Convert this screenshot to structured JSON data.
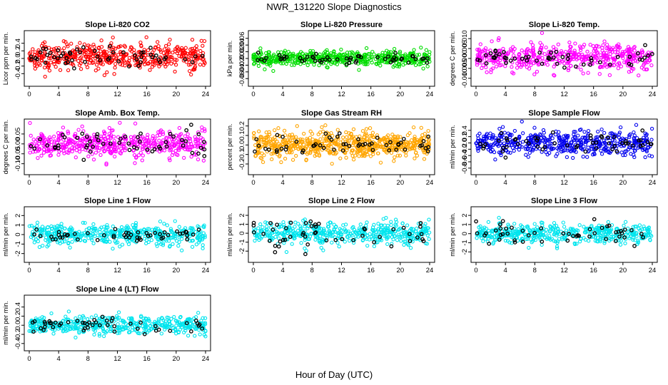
{
  "figure": {
    "title": "NWR_131220  Slope Diagnostics",
    "xlabel": "Hour of Day (UTC)"
  },
  "chart_data": [
    {
      "type": "scatter",
      "title": "Slope Li-820 CO2",
      "ylabel": "Licor ppm per min.",
      "xlim": [
        0,
        24
      ],
      "xticks": [
        0,
        4,
        8,
        12,
        16,
        20,
        24
      ],
      "ylim": [
        -0.6,
        0.6
      ],
      "yticks": [
        -0.4,
        -0.2,
        0.0,
        0.2,
        0.4
      ],
      "ytick_labels": [
        "-0.4",
        "-0.2",
        "0.0",
        "0.2",
        "0.4"
      ],
      "series": [
        {
          "color": "#ff0000",
          "x_range": [
            0,
            24
          ],
          "center": 0.05,
          "spread": 0.18,
          "count": 480
        },
        {
          "color": "#000000",
          "x_range": [
            0,
            24
          ],
          "center": 0.05,
          "spread": 0.12,
          "count": 55
        }
      ]
    },
    {
      "type": "scatter",
      "title": "Slope Li-820 Pressure",
      "ylabel": "kPa per min.",
      "xlim": [
        0,
        24
      ],
      "xticks": [
        0,
        4,
        8,
        12,
        16,
        20,
        24
      ],
      "ylim": [
        -0.068,
        0.068
      ],
      "yticks": [
        -0.06,
        -0.04,
        -0.02,
        0.0,
        0.02,
        0.04,
        0.06
      ],
      "ytick_labels": [
        "-0.06",
        "-0.04",
        "-0.02",
        "0.00",
        "0.02",
        "0.04",
        "0.06"
      ],
      "series": [
        {
          "color": "#00dd00",
          "x_range": [
            0,
            24
          ],
          "center": 0.0,
          "spread": 0.011,
          "count": 520
        },
        {
          "color": "#000000",
          "x_range": [
            0,
            24
          ],
          "center": 0.0,
          "spread": 0.007,
          "count": 55
        }
      ]
    },
    {
      "type": "scatter",
      "title": "Slope Li-820 Temp.",
      "ylabel": "degrees C per min.",
      "xlim": [
        0,
        24
      ],
      "xticks": [
        0,
        4,
        8,
        12,
        16,
        20,
        24
      ],
      "ylim": [
        -0.0115,
        0.0115
      ],
      "yticks": [
        -0.01,
        -0.005,
        0.0,
        0.005,
        0.01
      ],
      "ytick_labels": [
        "-0.010",
        "-0.005",
        "0.000",
        "0.005",
        "0.010"
      ],
      "series": [
        {
          "color": "#ff00ff",
          "x_range": [
            0,
            24
          ],
          "center": 0.0005,
          "spread": 0.0035,
          "count": 480
        },
        {
          "color": "#000000",
          "x_range": [
            0,
            24
          ],
          "center": 0.0,
          "spread": 0.0025,
          "count": 55
        }
      ]
    },
    {
      "type": "scatter",
      "title": "Slope Amb. Box Temp.",
      "ylabel": "degrees C per min.",
      "xlim": [
        0,
        24
      ],
      "xticks": [
        0,
        4,
        8,
        12,
        16,
        20,
        24
      ],
      "ylim": [
        -0.13,
        0.1
      ],
      "yticks": [
        -0.1,
        -0.05,
        0.0,
        0.05
      ],
      "ytick_labels": [
        "-0.10",
        "-0.05",
        "0.00",
        "0.05"
      ],
      "series": [
        {
          "color": "#ff00ff",
          "x_range": [
            0,
            24
          ],
          "center": 0.0,
          "spread": 0.035,
          "count": 480
        },
        {
          "color": "#000000",
          "x_range": [
            0,
            24
          ],
          "center": 0.0,
          "spread": 0.03,
          "count": 55
        }
      ]
    },
    {
      "type": "scatter",
      "title": "Slope Gas Stream RH",
      "ylabel": "percent per min.",
      "xlim": [
        0,
        24
      ],
      "xticks": [
        0,
        4,
        8,
        12,
        16,
        20,
        24
      ],
      "ylim": [
        -0.26,
        0.22
      ],
      "yticks": [
        -0.2,
        -0.1,
        0.0,
        0.1,
        0.2
      ],
      "ytick_labels": [
        "-0.2",
        "-0.1",
        "0.0",
        "0.1",
        "0.2"
      ],
      "series": [
        {
          "color": "#ffa500",
          "x_range": [
            0,
            24
          ],
          "center": 0.0,
          "spread": 0.07,
          "count": 620
        },
        {
          "color": "#000000",
          "x_range": [
            0,
            24
          ],
          "center": 0.0,
          "spread": 0.06,
          "count": 55
        }
      ]
    },
    {
      "type": "scatter",
      "title": "Slope Sample Flow",
      "ylabel": "ml/min per min.",
      "xlim": [
        0,
        24
      ],
      "xticks": [
        0,
        4,
        8,
        12,
        16,
        20,
        24
      ],
      "ylim": [
        -0.85,
        0.6
      ],
      "yticks": [
        -0.8,
        -0.6,
        -0.4,
        -0.2,
        0.0,
        0.2,
        0.4
      ],
      "ytick_labels": [
        "-0.8",
        "-0.6",
        "-0.4",
        "-0.2",
        "0.0",
        "0.2",
        "0.4"
      ],
      "series": [
        {
          "color": "#0000ee",
          "x_range": [
            0,
            24
          ],
          "center": 0.0,
          "spread": 0.2,
          "count": 480
        },
        {
          "color": "#000000",
          "x_range": [
            0,
            24
          ],
          "center": 0.0,
          "spread": 0.15,
          "count": 55
        }
      ]
    },
    {
      "type": "scatter",
      "title": "Slope Line 1 Flow",
      "ylabel": "ml/min per min.",
      "xlim": [
        0,
        24
      ],
      "xticks": [
        0,
        4,
        8,
        12,
        16,
        20,
        24
      ],
      "ylim": [
        -2.4,
        2.4
      ],
      "yticks": [
        -2,
        -1,
        0,
        1,
        2
      ],
      "ytick_labels": [
        "-2",
        "-1",
        "0",
        "1",
        "2"
      ],
      "series": [
        {
          "color": "#00e5ee",
          "x_range": [
            0,
            24
          ],
          "center": 0.0,
          "spread": 0.55,
          "count": 460
        },
        {
          "color": "#000000",
          "x_range": [
            0,
            24
          ],
          "center": 0.0,
          "spread": 0.35,
          "count": 50
        }
      ]
    },
    {
      "type": "scatter",
      "title": "Slope Line 2 Flow",
      "ylabel": "ml/min per min.",
      "xlim": [
        0,
        24
      ],
      "xticks": [
        0,
        4,
        8,
        12,
        16,
        20,
        24
      ],
      "ylim": [
        -2.7,
        2.4
      ],
      "yticks": [
        -2,
        -1,
        0,
        1,
        2
      ],
      "ytick_labels": [
        "-2",
        "-1",
        "0",
        "1",
        "2"
      ],
      "series": [
        {
          "color": "#00e5ee",
          "x_range": [
            0,
            24
          ],
          "center": 0.0,
          "spread": 0.6,
          "count": 460
        },
        {
          "color": "#000000",
          "x_range": [
            0,
            24
          ],
          "center": 0.0,
          "spread": 0.8,
          "count": 50
        }
      ]
    },
    {
      "type": "scatter",
      "title": "Slope Line 3 Flow",
      "ylabel": "ml/min per min.",
      "xlim": [
        0,
        24
      ],
      "xticks": [
        0,
        4,
        8,
        12,
        16,
        20,
        24
      ],
      "ylim": [
        -2.6,
        2.4
      ],
      "yticks": [
        -2,
        -1,
        0,
        1,
        2
      ],
      "ytick_labels": [
        "-2",
        "-1",
        "0",
        "1",
        "2"
      ],
      "series": [
        {
          "color": "#00e5ee",
          "x_range": [
            0,
            24
          ],
          "center": 0.0,
          "spread": 0.55,
          "count": 460
        },
        {
          "color": "#000000",
          "x_range": [
            0,
            24
          ],
          "center": 0.0,
          "spread": 0.7,
          "count": 50
        }
      ]
    },
    {
      "type": "scatter",
      "title": "Slope Line 4 (LT) Flow",
      "ylabel": "ml/min per min.",
      "xlim": [
        0,
        24
      ],
      "xticks": [
        0,
        4,
        8,
        12,
        16,
        20,
        24
      ],
      "ylim": [
        -0.45,
        0.55
      ],
      "yticks": [
        -0.4,
        -0.2,
        0.0,
        0.2,
        0.4
      ],
      "ytick_labels": [
        "-0.4",
        "-0.2",
        "0.0",
        "0.2",
        "0.4"
      ],
      "series": [
        {
          "color": "#00e5ee",
          "x_range": [
            0,
            24
          ],
          "center": 0.0,
          "spread": 0.1,
          "count": 460
        },
        {
          "color": "#000000",
          "x_range": [
            0,
            24
          ],
          "center": 0.0,
          "spread": 0.08,
          "count": 50
        }
      ]
    }
  ]
}
